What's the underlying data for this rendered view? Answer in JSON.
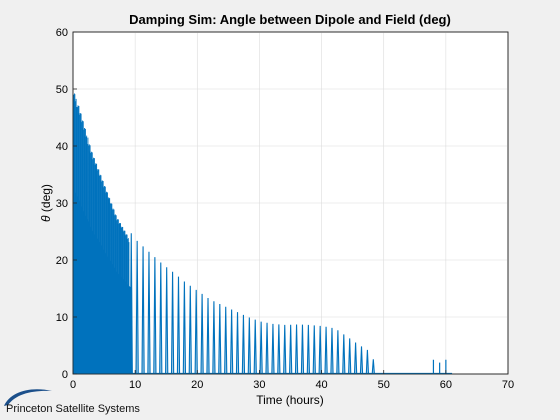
{
  "chart_data": {
    "type": "line",
    "title": "Damping Sim: Angle between Dipole and Field (deg)",
    "xlabel": "Time (hours)",
    "ylabel_symbol": "θ",
    "ylabel_text": " (deg)",
    "xlim": [
      0,
      70
    ],
    "ylim": [
      0,
      60
    ],
    "xticks": [
      0,
      10,
      20,
      30,
      40,
      50,
      60,
      70
    ],
    "yticks": [
      0,
      10,
      20,
      30,
      40,
      50,
      60
    ],
    "grid": true,
    "series": [
      {
        "color": "#0072bd",
        "envelope": [
          [
            0,
            52
          ],
          [
            0.5,
            51
          ],
          [
            1,
            49
          ],
          [
            2,
            45
          ],
          [
            3,
            41
          ],
          [
            4,
            38
          ],
          [
            5,
            35
          ],
          [
            6,
            32
          ],
          [
            7,
            29
          ],
          [
            8,
            27
          ],
          [
            9,
            25
          ],
          [
            10,
            23.5
          ],
          [
            12,
            21.5
          ],
          [
            14,
            19.5
          ],
          [
            16,
            17.8
          ],
          [
            18,
            16
          ],
          [
            20,
            14.5
          ],
          [
            22,
            13
          ],
          [
            24,
            12
          ],
          [
            26,
            11
          ],
          [
            28,
            10
          ],
          [
            30,
            9.2
          ],
          [
            32,
            8.8
          ],
          [
            34,
            8.6
          ],
          [
            36,
            8.7
          ],
          [
            38,
            8.6
          ],
          [
            40,
            8.4
          ],
          [
            42,
            8
          ],
          [
            44,
            6.5
          ],
          [
            46,
            5
          ],
          [
            48,
            3.7
          ],
          [
            48.5,
            0
          ]
        ],
        "late_spikes": [
          [
            58,
            2.5
          ],
          [
            59,
            2
          ],
          [
            60,
            2.5
          ]
        ]
      }
    ]
  },
  "branding": {
    "company": "Princeton Satellite Systems",
    "logo_icon": "swoosh-logo-icon",
    "logo_color": "#1b4f8a"
  }
}
